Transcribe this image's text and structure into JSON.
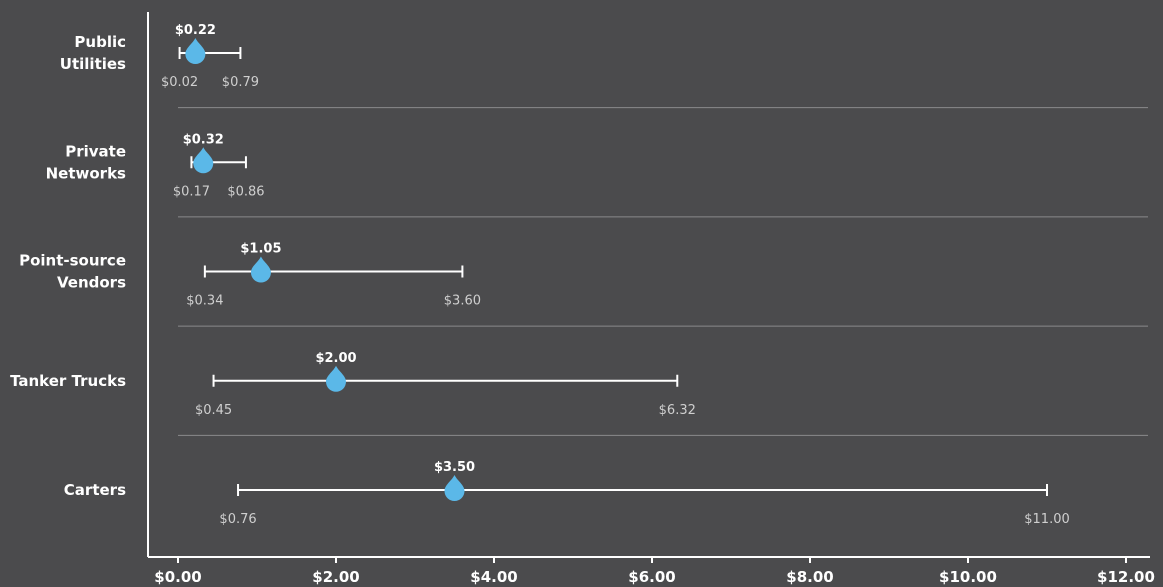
{
  "chart_data": {
    "type": "range",
    "xlim": [
      0,
      12
    ],
    "x_ticks": [
      0,
      2,
      4,
      6,
      8,
      10,
      12
    ],
    "x_tick_labels": [
      "$0.00",
      "$2.00",
      "$4.00",
      "$6.00",
      "$8.00",
      "$10.00",
      "$12.00"
    ],
    "categories": [
      {
        "label": [
          "Public",
          "Utilities"
        ],
        "low": 0.02,
        "mid": 0.22,
        "high": 0.79,
        "low_label": "$0.02",
        "mid_label": "$0.22",
        "high_label": "$0.79"
      },
      {
        "label": [
          "Private",
          "Networks"
        ],
        "low": 0.17,
        "mid": 0.32,
        "high": 0.86,
        "low_label": "$0.17",
        "mid_label": "$0.32",
        "high_label": "$0.86"
      },
      {
        "label": [
          "Point-source",
          "Vendors"
        ],
        "low": 0.34,
        "mid": 1.05,
        "high": 3.6,
        "low_label": "$0.34",
        "mid_label": "$1.05",
        "high_label": "$3.60"
      },
      {
        "label": [
          "Tanker Trucks"
        ],
        "low": 0.45,
        "mid": 2.0,
        "high": 6.32,
        "low_label": "$0.45",
        "mid_label": "$2.00",
        "high_label": "$6.32"
      },
      {
        "label": [
          "Carters"
        ],
        "low": 0.76,
        "mid": 3.5,
        "high": 11.0,
        "low_label": "$0.76",
        "mid_label": "$3.50",
        "high_label": "$11.00"
      }
    ],
    "colors": {
      "background": "#4b4b4d",
      "marker": "#5bb8e8",
      "line": "#ffffff",
      "separator": "#8a8a8c"
    },
    "marker_shape": "water-drop"
  }
}
